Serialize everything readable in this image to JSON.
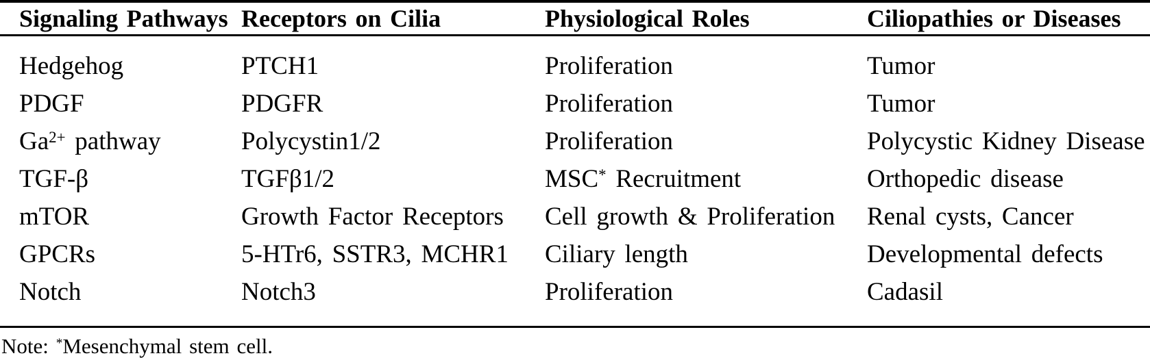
{
  "colors": {
    "text": "#000000",
    "background": "#ffffff",
    "rule": "#000000"
  },
  "table": {
    "headers": [
      "Signaling Pathways",
      "Receptors on Cilia",
      "Physiological Roles",
      "Ciliopathies or Diseases"
    ],
    "rows": [
      {
        "pathway": "Hedgehog",
        "receptor": "PTCH1",
        "role": "Proliferation",
        "disease": "Tumor"
      },
      {
        "pathway": "PDGF",
        "receptor": "PDGFR",
        "role": "Proliferation",
        "disease": "Tumor"
      },
      {
        "pathway": {
          "base": "Ga",
          "sup": "2+",
          "rest": "pathway"
        },
        "receptor": "Polycystin1/2",
        "role": "Proliferation",
        "disease": "Polycystic Kidney Disease"
      },
      {
        "pathway": "TGF-β",
        "receptor": "TGFβ1/2",
        "role": {
          "base": "MSC",
          "sup": "*",
          "rest": "Recruitment"
        },
        "disease": "Orthopedic disease"
      },
      {
        "pathway": "mTOR",
        "receptor": "Growth Factor Receptors",
        "role": "Cell growth & Proliferation",
        "disease": "Renal cysts, Cancer"
      },
      {
        "pathway": "GPCRs",
        "receptor": "5-HTr6, SSTR3, MCHR1",
        "role": "Ciliary length",
        "disease": "Developmental defects"
      },
      {
        "pathway": "Notch",
        "receptor": "Notch3",
        "role": "Proliferation",
        "disease": "Cadasil"
      }
    ],
    "note": {
      "prefix": "Note:",
      "sup": "*",
      "rest": "Mesenchymal stem cell."
    }
  }
}
